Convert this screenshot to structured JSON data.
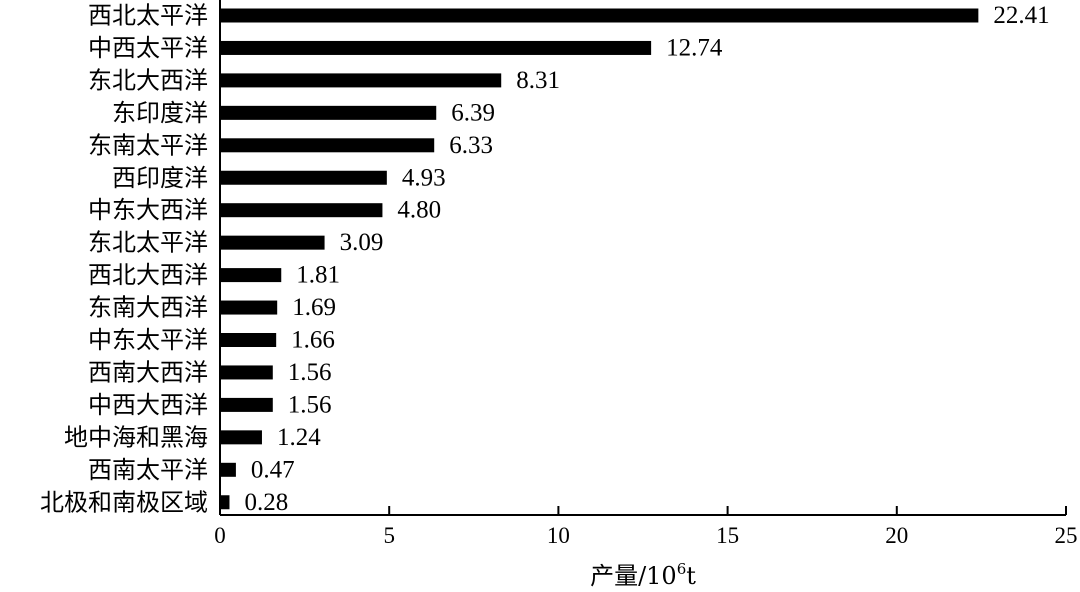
{
  "chart_data": {
    "type": "bar",
    "orientation": "horizontal",
    "categories": [
      "西北太平洋",
      "中西太平洋",
      "东北大西洋",
      "东印度洋",
      "东南太平洋",
      "西印度洋",
      "中东大西洋",
      "东北太平洋",
      "西北大西洋",
      "东南大西洋",
      "中东太平洋",
      "西南大西洋",
      "中西大西洋",
      "地中海和黑海",
      "西南太平洋",
      "北极和南极区域"
    ],
    "values": [
      22.41,
      12.74,
      8.31,
      6.39,
      6.33,
      4.93,
      4.8,
      3.09,
      1.81,
      1.69,
      1.66,
      1.56,
      1.56,
      1.24,
      0.47,
      0.28
    ],
    "value_labels": [
      "22.41",
      "12.74",
      "8.31",
      "6.39",
      "6.33",
      "4.93",
      "4.80",
      "3.09",
      "1.81",
      "1.69",
      "1.66",
      "1.56",
      "1.56",
      "1.24",
      "0.47",
      "0.28"
    ],
    "title": "",
    "xlabel": {
      "prefix": "产量/10",
      "sup": "6",
      "suffix": "t"
    },
    "ylabel": "",
    "xlim": [
      0,
      25
    ],
    "xticks": [
      0,
      5,
      10,
      15,
      20,
      25
    ],
    "xtick_labels": [
      "0",
      "5",
      "10",
      "15",
      "20",
      "25"
    ],
    "grid": false,
    "legend": "none",
    "bar_color": "#000000"
  }
}
